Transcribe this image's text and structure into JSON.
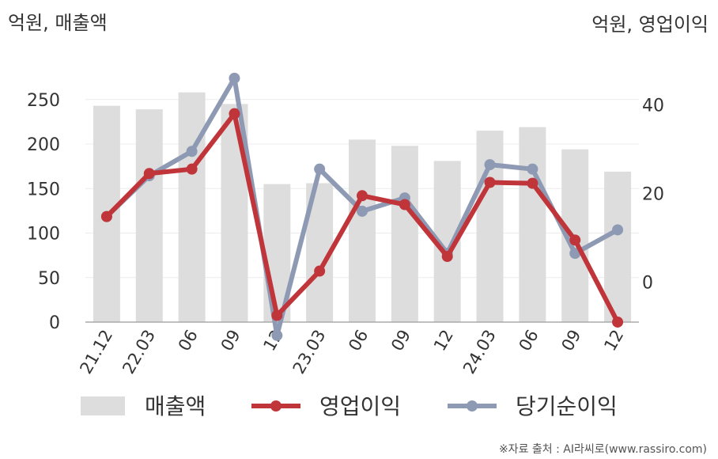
{
  "chart_data": {
    "type": "bar+line",
    "categories": [
      "21.12",
      "22.03",
      "06",
      "09",
      "12",
      "23.03",
      "06",
      "09",
      "12",
      "24.03",
      "06",
      "09",
      "12"
    ],
    "left_axis": {
      "unit_label": "억원, 매출액",
      "range": [
        0,
        250
      ],
      "ticks": [
        0,
        50,
        100,
        150,
        200,
        250
      ]
    },
    "right_axis": {
      "unit_label": "억원, 영업이익",
      "range": [
        -14,
        54
      ],
      "ticks": [
        0,
        20,
        40
      ]
    },
    "series": [
      {
        "name": "매출액",
        "kind": "bar",
        "axis": "left",
        "color": "#dddddd",
        "values": [
          243,
          239,
          258,
          245,
          155,
          156,
          205,
          198,
          181,
          215,
          219,
          194,
          169
        ]
      },
      {
        "name": "영업이익",
        "kind": "line",
        "axis": "right",
        "color": "#c0353a",
        "values": [
          14.8,
          24.5,
          25.5,
          38,
          -7.5,
          2.5,
          19.5,
          17.5,
          5.8,
          22.5,
          22.3,
          9.5,
          -9
        ]
      },
      {
        "name": "당기순이익",
        "kind": "line",
        "axis": "right",
        "color": "#8e9ab4",
        "values": [
          14.8,
          24,
          29.5,
          46,
          -12,
          25.5,
          16,
          19,
          6.5,
          26.5,
          25.5,
          6.5,
          11.8
        ]
      }
    ],
    "legend_position": "bottom",
    "grid": true
  },
  "source_text": "※자료 출처 : AI라씨로(www.rassiro.com)"
}
